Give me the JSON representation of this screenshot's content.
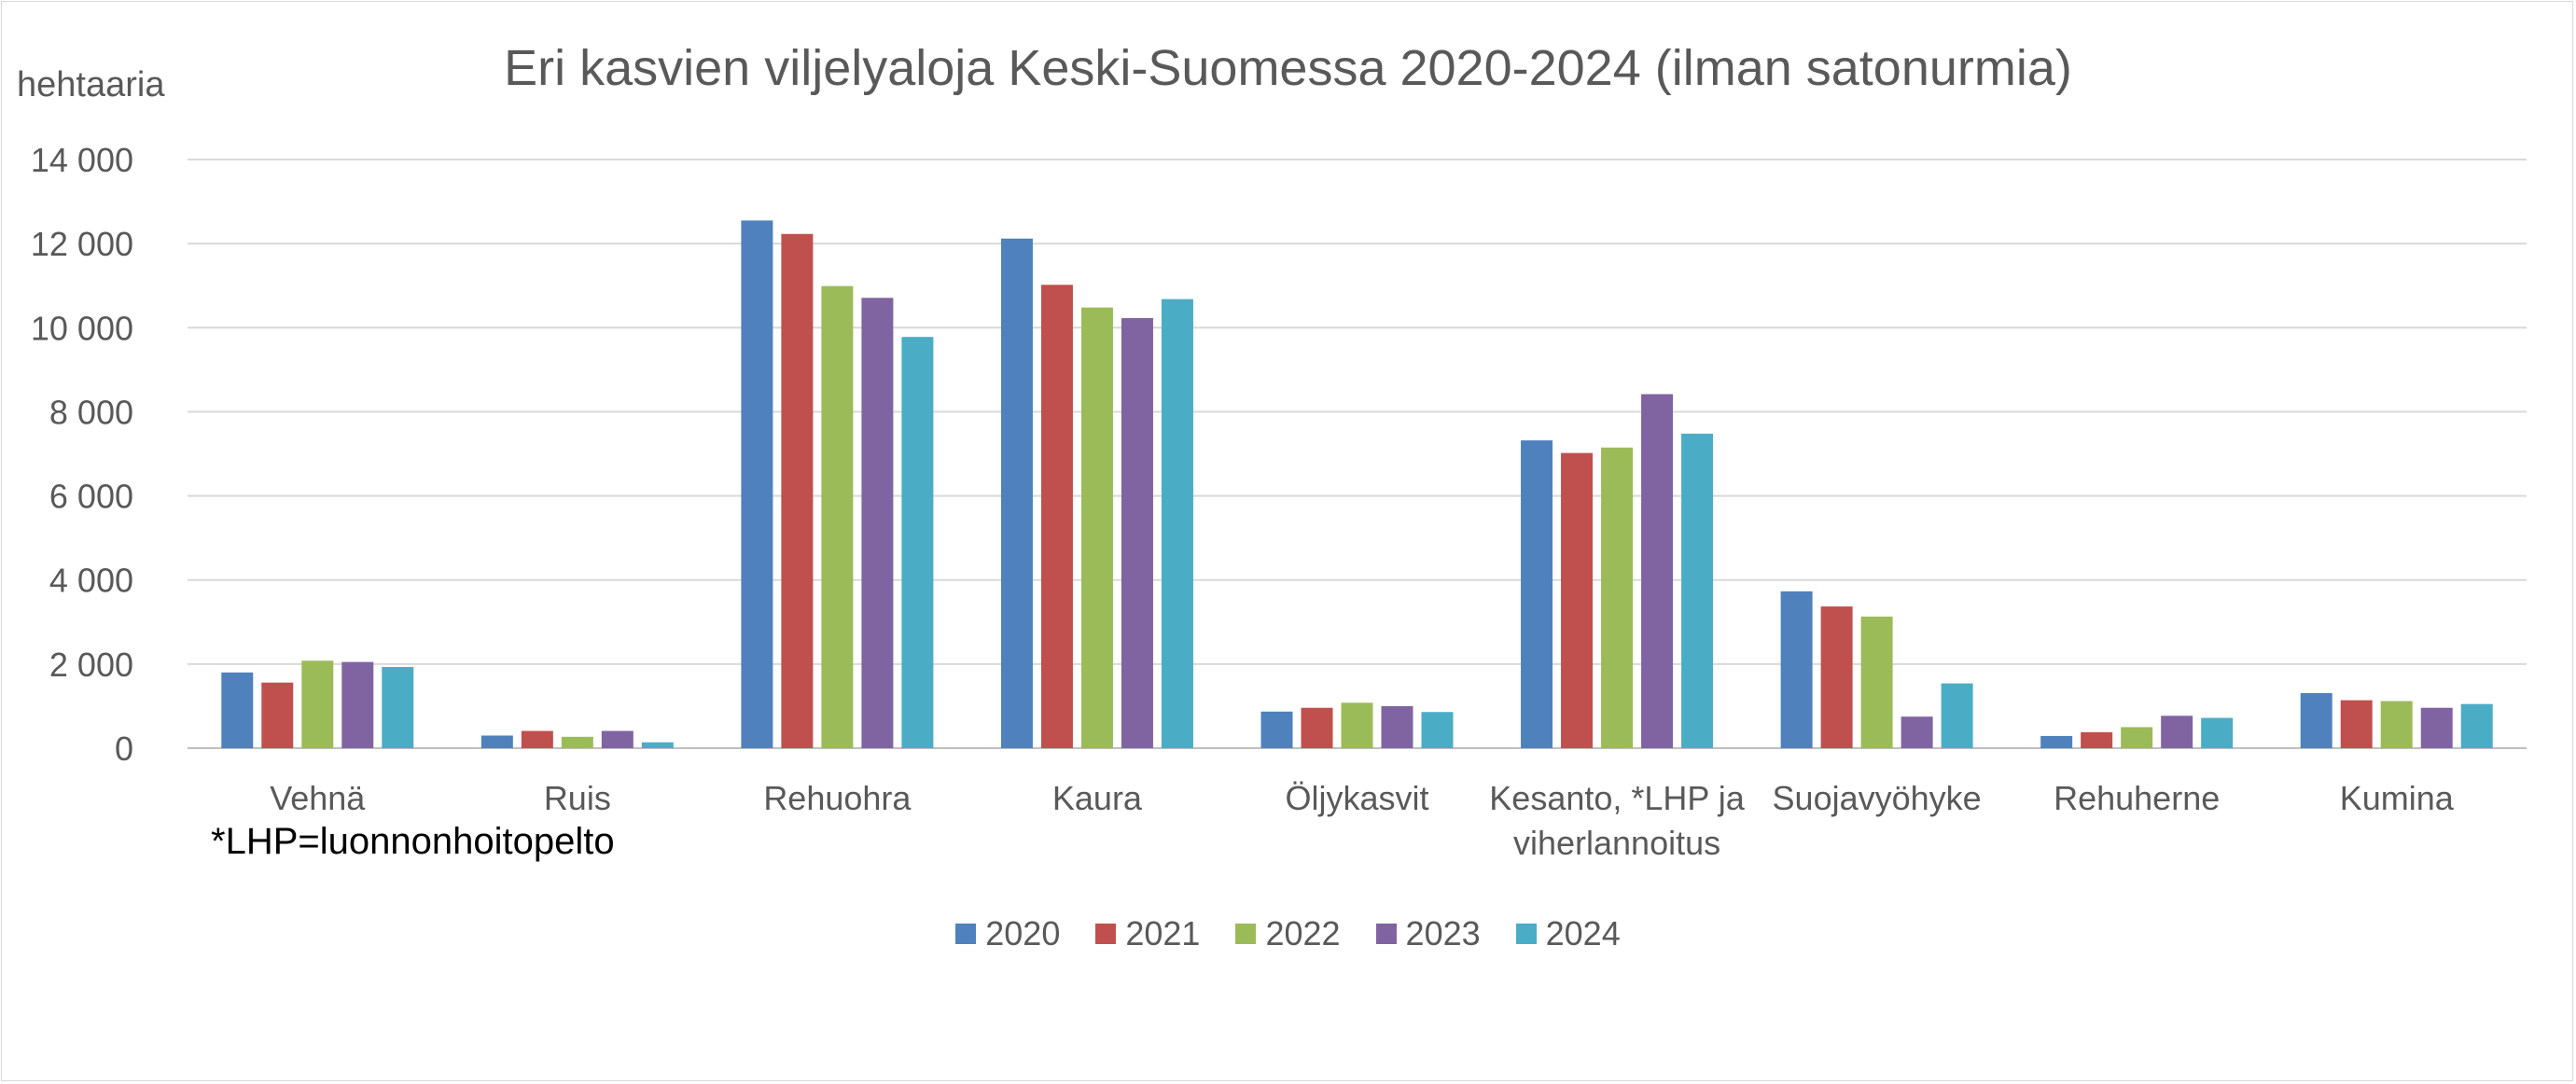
{
  "chart_data": {
    "type": "bar",
    "title": "Eri kasvien viljelyaloja Keski-Suomessa 2020-2024 (ilman satonurmia)",
    "ylabel": "hehtaaria",
    "footnote": "*LHP=luonnonhoitopelto",
    "categories": [
      [
        "Vehnä"
      ],
      [
        "Ruis"
      ],
      [
        "Rehuohra"
      ],
      [
        "Kaura"
      ],
      [
        "Öljykasvit"
      ],
      [
        "Kesanto, *LHP ja",
        "viherlannoitus"
      ],
      [
        "Suojavyöhyke"
      ],
      [
        "Rehuherne"
      ],
      [
        "Kumina"
      ]
    ],
    "series": [
      {
        "name": "2020",
        "color": "#4f81bd",
        "values": [
          1800,
          300,
          12550,
          12120,
          870,
          7320,
          3730,
          290,
          1310
        ]
      },
      {
        "name": "2021",
        "color": "#c0504d",
        "values": [
          1560,
          410,
          12230,
          11020,
          960,
          7020,
          3370,
          380,
          1140
        ]
      },
      {
        "name": "2022",
        "color": "#9bbb59",
        "values": [
          2080,
          270,
          10990,
          10480,
          1080,
          7150,
          3130,
          500,
          1120
        ]
      },
      {
        "name": "2023",
        "color": "#8064a2",
        "values": [
          2050,
          410,
          10710,
          10230,
          1000,
          8420,
          750,
          770,
          960
        ]
      },
      {
        "name": "2024",
        "color": "#4bacc6",
        "values": [
          1930,
          140,
          9780,
          10680,
          860,
          7480,
          1540,
          720,
          1050
        ]
      }
    ],
    "y_ticks": [
      "0",
      "2 000",
      "4 000",
      "6 000",
      "8 000",
      "10 000",
      "12 000",
      "14 000"
    ],
    "ylim": [
      0,
      14000
    ],
    "grid": true,
    "legend_position": "bottom"
  }
}
